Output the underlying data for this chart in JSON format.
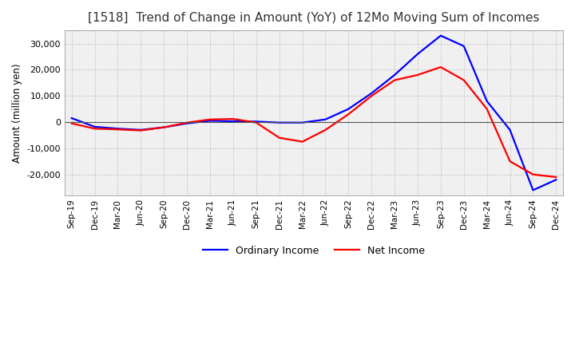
{
  "title": "[1518]  Trend of Change in Amount (YoY) of 12Mo Moving Sum of Incomes",
  "ylabel": "Amount (million yen)",
  "ylim": [
    -28000,
    35000
  ],
  "yticks": [
    -20000,
    -10000,
    0,
    10000,
    20000,
    30000
  ],
  "x_labels": [
    "Sep-19",
    "Dec-19",
    "Mar-20",
    "Jun-20",
    "Sep-20",
    "Dec-20",
    "Mar-21",
    "Jun-21",
    "Sep-21",
    "Dec-21",
    "Mar-22",
    "Jun-22",
    "Sep-22",
    "Dec-22",
    "Mar-23",
    "Jun-23",
    "Sep-23",
    "Dec-23",
    "Mar-24",
    "Jun-24",
    "Sep-24",
    "Dec-24"
  ],
  "ordinary_income": [
    1500,
    -1800,
    -2500,
    -3000,
    -2000,
    -500,
    500,
    300,
    200,
    -200,
    -200,
    1000,
    5000,
    11000,
    18000,
    26000,
    33000,
    29000,
    8000,
    -3000,
    -26000,
    -22000
  ],
  "net_income": [
    -500,
    -2500,
    -2800,
    -3200,
    -2000,
    -200,
    1000,
    1200,
    -200,
    -6000,
    -7500,
    -3000,
    3000,
    10000,
    16000,
    18000,
    21000,
    16000,
    5000,
    -15000,
    -20000,
    -21000
  ],
  "ordinary_color": "#0000ff",
  "net_color": "#ff0000",
  "background_color": "#ffffff",
  "plot_bg_color": "#f0f0f0",
  "grid_color": "#aaaaaa",
  "title_fontsize": 11,
  "legend_labels": [
    "Ordinary Income",
    "Net Income"
  ]
}
